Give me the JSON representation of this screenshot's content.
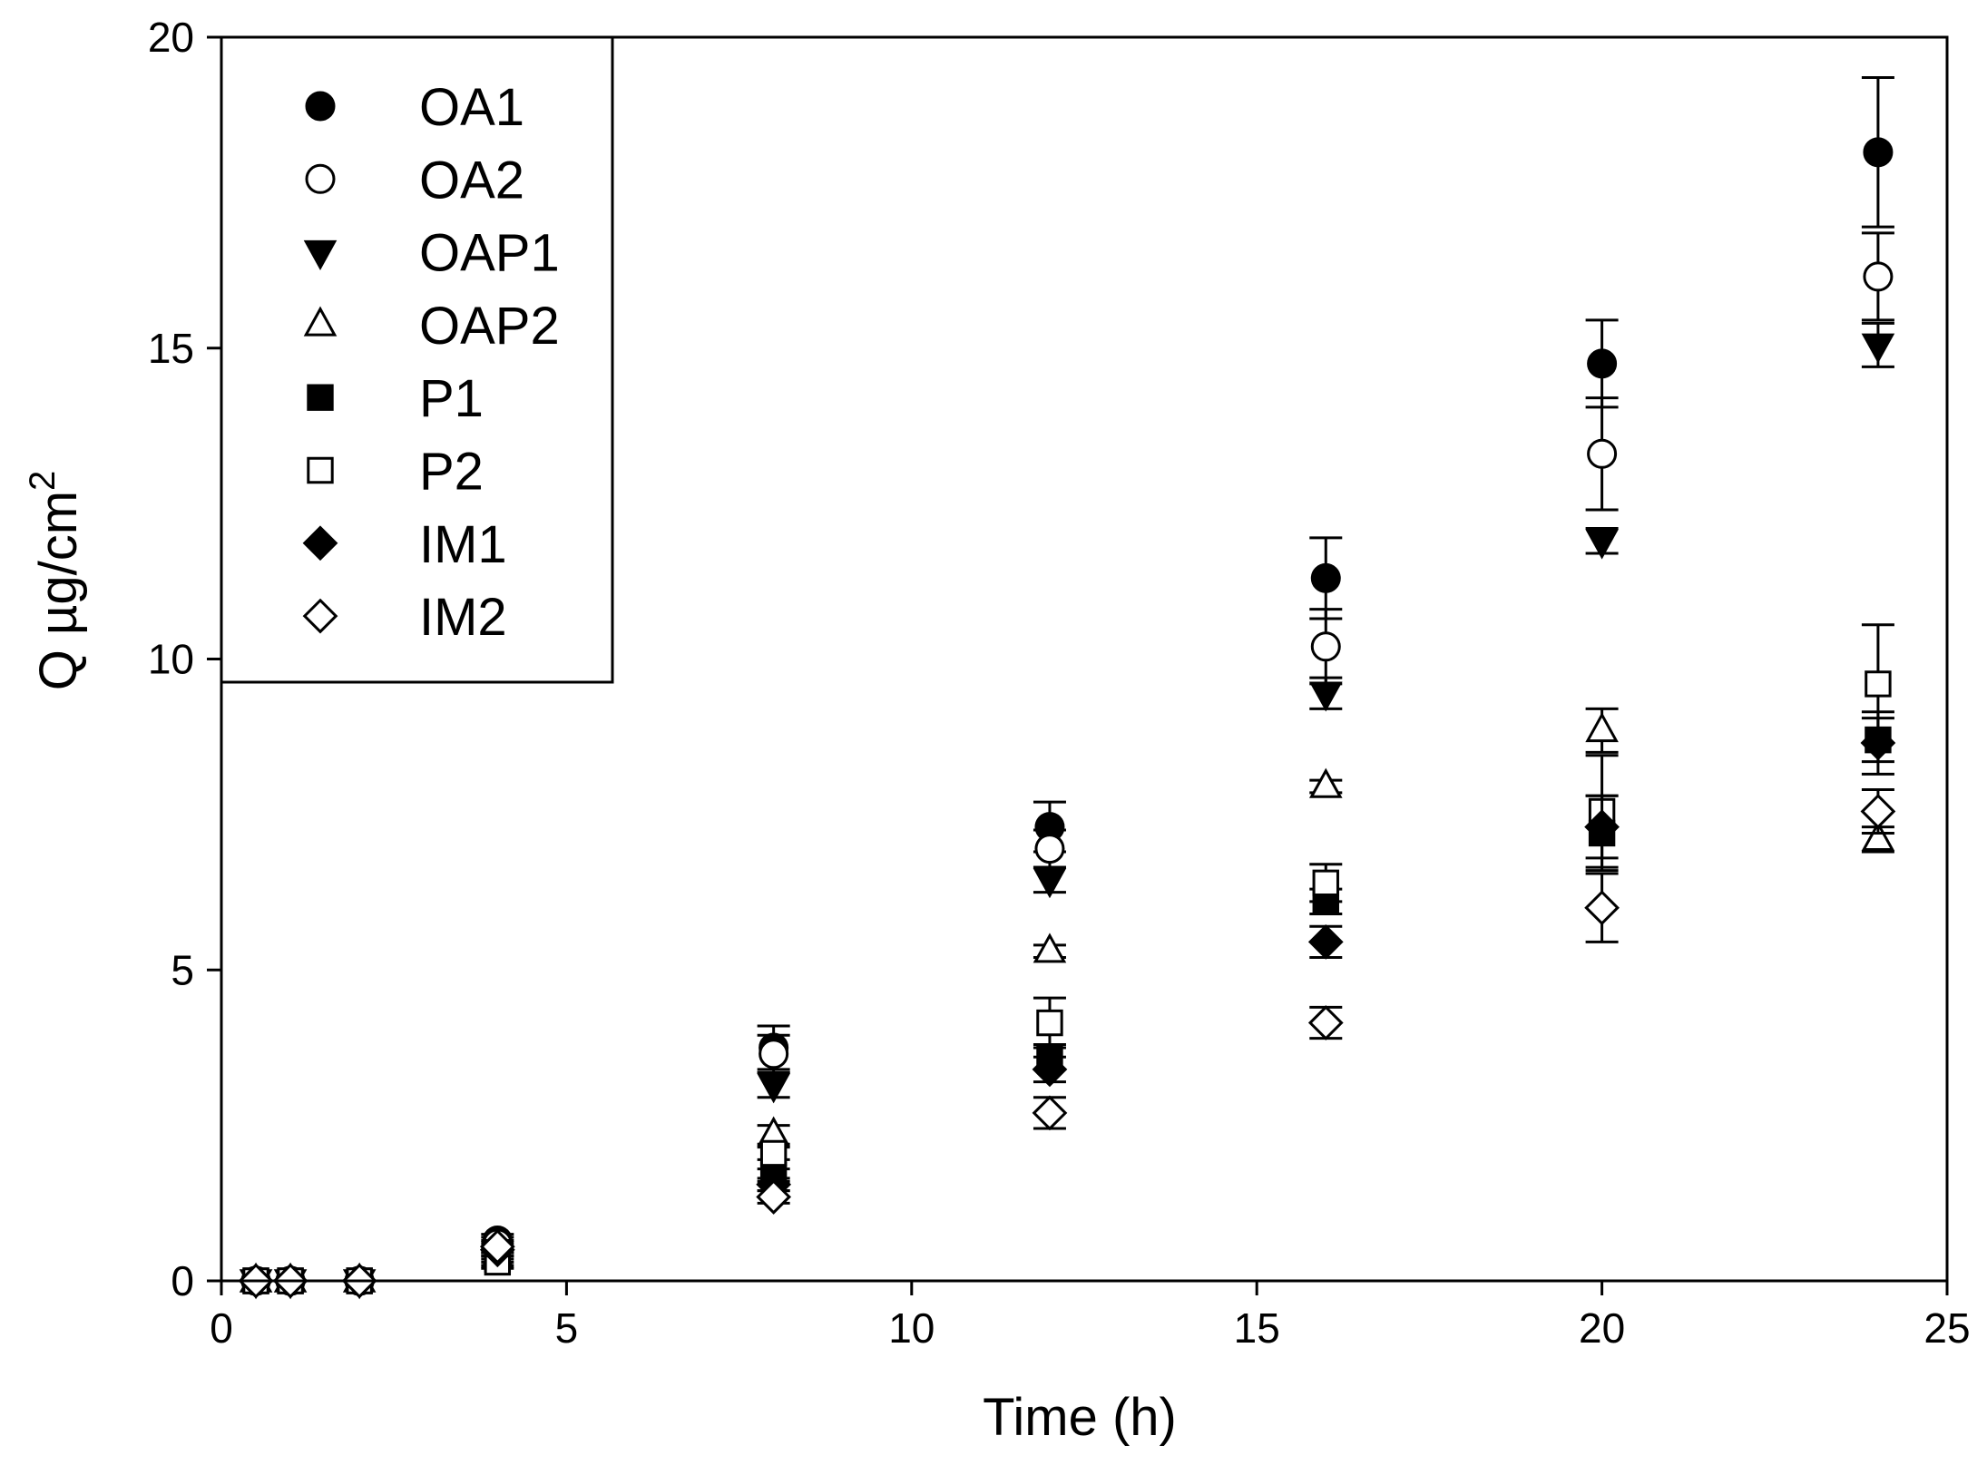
{
  "chart_data": {
    "type": "scatter",
    "title": "",
    "xlabel": "Time (h)",
    "ylabel": "Q µg/cm",
    "ylabel_superscript": "2",
    "xlim": [
      0,
      25
    ],
    "ylim": [
      0,
      20
    ],
    "xticks": [
      0,
      5,
      10,
      15,
      20,
      25
    ],
    "yticks": [
      0,
      5,
      10,
      15,
      20
    ],
    "x": [
      0.5,
      1,
      2,
      4,
      8,
      12,
      16,
      20,
      24
    ],
    "legend_position": "top-left",
    "series": [
      {
        "name": "OA1",
        "marker": "circle",
        "filled": true,
        "values": [
          0,
          0,
          0,
          0.65,
          3.75,
          7.3,
          11.3,
          14.75,
          18.15
        ],
        "errors": [
          0,
          0,
          0,
          0.1,
          0.35,
          0.4,
          0.65,
          0.7,
          1.2
        ]
      },
      {
        "name": "OA2",
        "marker": "circle",
        "filled": false,
        "values": [
          0,
          0,
          0,
          0.6,
          3.65,
          6.95,
          10.2,
          13.3,
          16.15
        ],
        "errors": [
          0,
          0,
          0,
          0.1,
          0.3,
          0.3,
          0.6,
          0.9,
          0.7
        ]
      },
      {
        "name": "OAP1",
        "marker": "triangle-down",
        "filled": true,
        "values": [
          0,
          0,
          0,
          0.45,
          3.15,
          6.45,
          9.45,
          11.9,
          15.05
        ],
        "errors": [
          0,
          0,
          0,
          0.1,
          0.2,
          0.2,
          0.25,
          0.2,
          0.35
        ]
      },
      {
        "name": "OAP2",
        "marker": "triangle-up",
        "filled": false,
        "values": [
          0,
          0,
          0,
          0.4,
          2.35,
          5.3,
          7.95,
          8.85,
          7.1
        ],
        "errors": [
          0,
          0,
          0,
          0.1,
          0.15,
          0.1,
          0.1,
          0.35,
          0.2
        ]
      },
      {
        "name": "P1",
        "marker": "square",
        "filled": true,
        "values": [
          0,
          0,
          0,
          0.35,
          1.7,
          3.6,
          6.1,
          7.2,
          8.7
        ],
        "errors": [
          0,
          0,
          0,
          0.1,
          0.1,
          0.2,
          0.2,
          0.6,
          0.35
        ]
      },
      {
        "name": "P2",
        "marker": "square",
        "filled": false,
        "values": [
          0,
          0,
          0,
          0.3,
          2.05,
          4.15,
          6.4,
          7.55,
          9.6
        ],
        "errors": [
          0,
          0,
          0,
          0.1,
          0.1,
          0.4,
          0.3,
          0.9,
          0.95
        ]
      },
      {
        "name": "IM1",
        "marker": "diamond",
        "filled": true,
        "values": [
          0,
          0,
          0,
          0.5,
          1.55,
          3.4,
          5.45,
          7.3,
          8.65
        ],
        "errors": [
          0,
          0,
          0,
          0.1,
          0.1,
          0.2,
          0.25,
          0.5,
          0.5
        ]
      },
      {
        "name": "IM2",
        "marker": "diamond",
        "filled": false,
        "values": [
          0,
          0,
          0,
          0.55,
          1.35,
          2.7,
          4.15,
          6.0,
          7.55
        ],
        "errors": [
          0,
          0,
          0,
          0.1,
          0.1,
          0.25,
          0.25,
          0.55,
          0.35
        ]
      }
    ]
  }
}
